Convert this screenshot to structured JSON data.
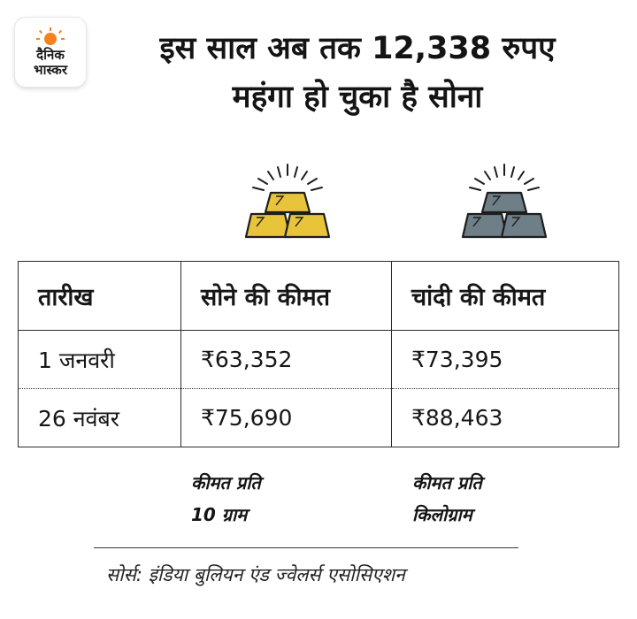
{
  "brand": {
    "name_line1": "दैनिक",
    "name_line2": "भास्कर",
    "sun_color": "#f58220"
  },
  "headline": {
    "line1": "इस साल अब तक 12,338 रुपए",
    "line2": "महंगा हो चुका है सोना"
  },
  "icons": {
    "gold": {
      "name": "gold-bars-icon",
      "color": "#e8c43a"
    },
    "silver": {
      "name": "silver-bars-icon",
      "color": "#6f7f87"
    }
  },
  "table": {
    "headers": [
      "तारीख",
      "सोने की कीमत",
      "चांदी की कीमत"
    ],
    "rows": [
      [
        "1 जनवरी",
        "₹63,352",
        "₹73,395"
      ],
      [
        "26 नवंबर",
        "₹75,690",
        "₹88,463"
      ]
    ]
  },
  "notes": {
    "gold_line1": "कीमत प्रति",
    "gold_line2": "10 ग्राम",
    "silver_line1": "कीमत प्रति",
    "silver_line2": "किलोग्राम"
  },
  "source": "सोर्स: इंडिया बुलियन एंड ज्वेलर्स एसोसिएशन"
}
